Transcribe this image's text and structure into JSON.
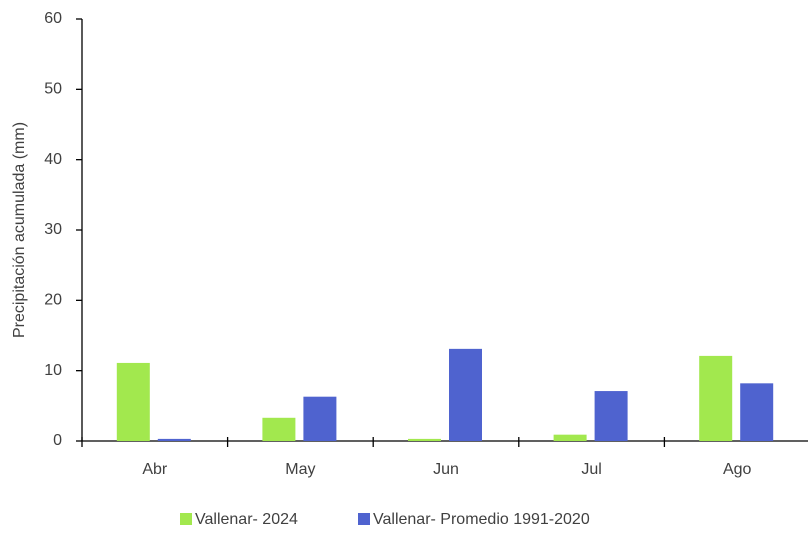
{
  "chart_data": {
    "type": "bar",
    "y_label": "Precipitación acumulada (mm)",
    "categories": [
      "Abr",
      "May",
      "Jun",
      "Jul",
      "Ago"
    ],
    "series": [
      {
        "name": "Vallenar- 2024",
        "color": "#a2e84e",
        "values": [
          11.1,
          3.3,
          0.3,
          0.9,
          12.1
        ]
      },
      {
        "name": "Vallenar- Promedio 1991-2020",
        "color": "#4f63cf",
        "values": [
          0.3,
          6.3,
          13.1,
          7.1,
          8.2
        ]
      }
    ],
    "ylim": [
      0,
      60
    ],
    "yticks": [
      0,
      10,
      20,
      30,
      40,
      50,
      60
    ]
  }
}
